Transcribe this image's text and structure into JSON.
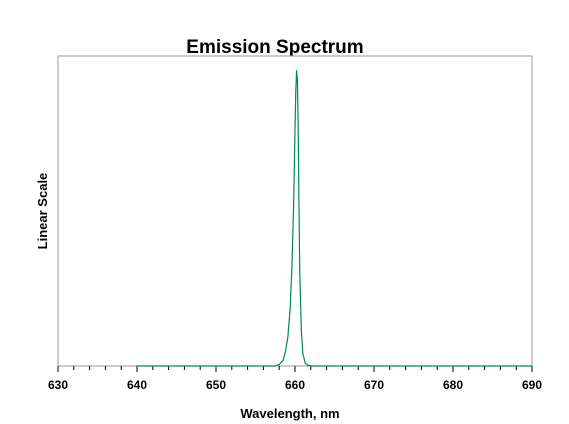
{
  "chart_data": {
    "type": "line",
    "title": "Emission Spectrum",
    "xlabel": "Wavelength, nm",
    "ylabel": "Linear Scale",
    "xlim": [
      630,
      690
    ],
    "ylim": [
      0,
      1.05
    ],
    "x_ticks": [
      "630",
      "640",
      "650",
      "660",
      "670",
      "680",
      "690"
    ],
    "y_ticks": [],
    "grid": false,
    "legend": "none",
    "series": [
      {
        "color": "#00875a",
        "x": [
          640,
          657.5,
          658.0,
          658.5,
          658.8,
          659.1,
          659.4,
          659.6,
          659.8,
          659.9,
          660.0,
          660.1,
          660.2,
          660.3,
          660.4,
          660.5,
          660.6,
          660.8,
          661.0,
          661.3,
          661.6,
          662.0,
          690
        ],
        "y": [
          0,
          0,
          0.005,
          0.02,
          0.05,
          0.1,
          0.2,
          0.33,
          0.52,
          0.65,
          0.8,
          0.93,
          1.0,
          0.97,
          0.82,
          0.55,
          0.32,
          0.12,
          0.04,
          0.01,
          0.003,
          0,
          0
        ]
      }
    ]
  }
}
